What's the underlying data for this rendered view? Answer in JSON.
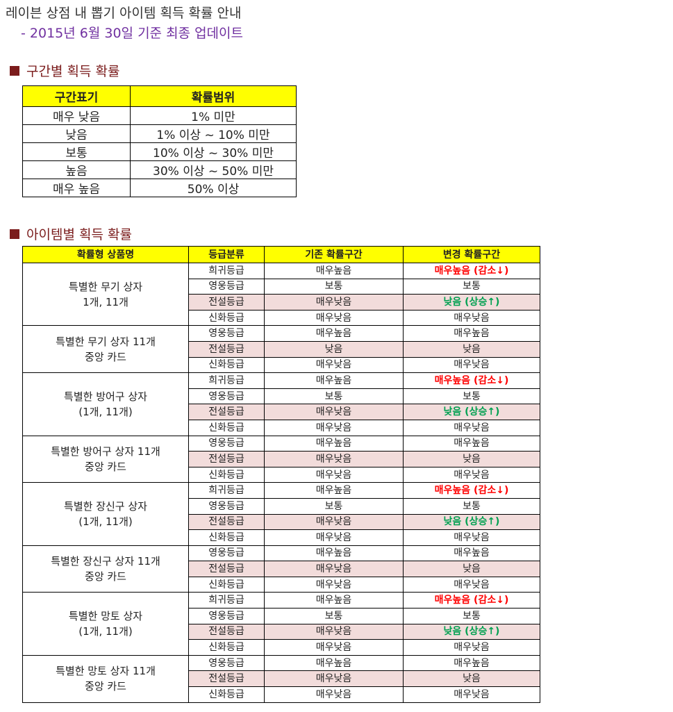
{
  "header": {
    "title": "레이븐 상점 내 뽑기 아이템 획득 확률 안내",
    "subtitle": "- 2015년 6월 30일 기준 최종 업데이트",
    "subtitle_color": "#7030a0"
  },
  "range_section": {
    "heading": "구간별 획득 확률",
    "heading_color": "#7b1c1c",
    "table": {
      "header_color": "#ffff00",
      "header": [
        "구간표기",
        "확률범위"
      ],
      "rows": [
        [
          "매우 낮음",
          "1% 미만"
        ],
        [
          "낮음",
          "1% 이상 ~ 10% 미만"
        ],
        [
          "보통",
          "10% 이상 ~ 30% 미만"
        ],
        [
          "높음",
          "30% 이상 ~ 50% 미만"
        ],
        [
          "매우 높음",
          "50% 이상"
        ]
      ]
    }
  },
  "item_section": {
    "heading": "아이템별 획득 확률",
    "heading_color": "#7b1c1c",
    "table": {
      "header_color": "#ffff00",
      "highlight_color": "#f2dcdb",
      "header": [
        "확률형 상품명",
        "등급분류",
        "기존 확률구간",
        "변경 확률구간"
      ],
      "groups": [
        {
          "name": [
            "특별한 무기 상자",
            "1개, 11개"
          ],
          "rows": [
            {
              "grade": "희귀등급",
              "before": "매우높음",
              "after": "매우높음 (감소↓)",
              "color": "#ff0000"
            },
            {
              "grade": "영웅등급",
              "before": "보통",
              "after": "보통"
            },
            {
              "grade": "전설등급",
              "before": "매우낮음",
              "after": "낮음 (상승↑)",
              "color": "#00a050",
              "highlight": true
            },
            {
              "grade": "신화등급",
              "before": "매우낮음",
              "after": "매우낮음"
            }
          ]
        },
        {
          "name": [
            "특별한 무기 상자 11개",
            "중앙 카드"
          ],
          "rows": [
            {
              "grade": "영웅등급",
              "before": "매우높음",
              "after": "매우높음"
            },
            {
              "grade": "전설등급",
              "before": "낮음",
              "after": "낮음",
              "highlight": true
            },
            {
              "grade": "신화등급",
              "before": "매우낮음",
              "after": "매우낮음"
            }
          ]
        },
        {
          "name": [
            "특별한 방어구 상자",
            "(1개, 11개)"
          ],
          "rows": [
            {
              "grade": "희귀등급",
              "before": "매우높음",
              "after": "매우높음 (감소↓)",
              "color": "#ff0000"
            },
            {
              "grade": "영웅등급",
              "before": "보통",
              "after": "보통"
            },
            {
              "grade": "전설등급",
              "before": "매우낮음",
              "after": "낮음 (상승↑)",
              "color": "#00a050",
              "highlight": true
            },
            {
              "grade": "신화등급",
              "before": "매우낮음",
              "after": "매우낮음"
            }
          ]
        },
        {
          "name": [
            "특별한 방어구 상자 11개",
            "중앙 카드"
          ],
          "rows": [
            {
              "grade": "영웅등급",
              "before": "매우높음",
              "after": "매우높음"
            },
            {
              "grade": "전설등급",
              "before": "매우낮음",
              "after": "낮음",
              "highlight": true
            },
            {
              "grade": "신화등급",
              "before": "매우낮음",
              "after": "매우낮음"
            }
          ]
        },
        {
          "name": [
            "특별한 장신구 상자",
            "(1개, 11개)"
          ],
          "rows": [
            {
              "grade": "희귀등급",
              "before": "매우높음",
              "after": "매우높음 (감소↓)",
              "color": "#ff0000"
            },
            {
              "grade": "영웅등급",
              "before": "보통",
              "after": "보통"
            },
            {
              "grade": "전설등급",
              "before": "매우낮음",
              "after": "낮음 (상승↑)",
              "color": "#00a050",
              "highlight": true
            },
            {
              "grade": "신화등급",
              "before": "매우낮음",
              "after": "매우낮음"
            }
          ]
        },
        {
          "name": [
            "특별한 장신구 상자 11개",
            "중앙 카드"
          ],
          "rows": [
            {
              "grade": "영웅등급",
              "before": "매우높음",
              "after": "매우높음"
            },
            {
              "grade": "전설등급",
              "before": "매우낮음",
              "after": "낮음",
              "highlight": true
            },
            {
              "grade": "신화등급",
              "before": "매우낮음",
              "after": "매우낮음"
            }
          ]
        },
        {
          "name": [
            "특별한 망토 상자",
            "(1개, 11개)"
          ],
          "rows": [
            {
              "grade": "희귀등급",
              "before": "매우높음",
              "after": "매우높음 (감소↓)",
              "color": "#ff0000"
            },
            {
              "grade": "영웅등급",
              "before": "보통",
              "after": "보통"
            },
            {
              "grade": "전설등급",
              "before": "매우낮음",
              "after": "낮음 (상승↑)",
              "color": "#00a050",
              "highlight": true
            },
            {
              "grade": "신화등급",
              "before": "매우낮음",
              "after": "매우낮음"
            }
          ]
        },
        {
          "name": [
            "특별한 망토 상자 11개",
            "중앙 카드"
          ],
          "rows": [
            {
              "grade": "영웅등급",
              "before": "매우높음",
              "after": "매우높음"
            },
            {
              "grade": "전설등급",
              "before": "매우낮음",
              "after": "낮음",
              "highlight": true
            },
            {
              "grade": "신화등급",
              "before": "매우낮음",
              "after": "매우낮음"
            }
          ]
        }
      ]
    }
  }
}
